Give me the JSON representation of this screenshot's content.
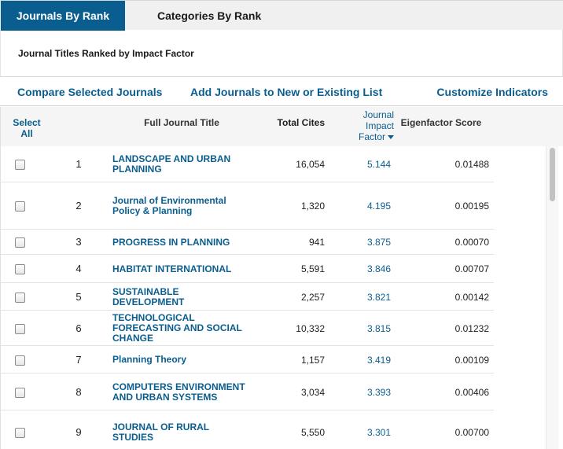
{
  "tabs": [
    {
      "label": "Journals By Rank",
      "active": true
    },
    {
      "label": "Categories By Rank",
      "active": false
    }
  ],
  "subtitle": "Journal Titles Ranked by Impact Factor",
  "actions": {
    "compare": "Compare Selected Journals",
    "add": "Add Journals to New or Existing List",
    "customize": "Customize Indicators"
  },
  "columns": {
    "select_line1": "Select",
    "select_line2": "All",
    "title": "Full Journal Title",
    "cites": "Total Cites",
    "jif_line1": "Journal",
    "jif_line2": "Impact",
    "jif_line3": "Factor",
    "eigen": "Eigenfactor Score"
  },
  "rows": [
    {
      "rank": "1",
      "title_lines": [
        "LANDSCAPE AND URBAN",
        "PLANNING"
      ],
      "cites": "16,054",
      "jif": "5.144",
      "eigen": "0.01488"
    },
    {
      "rank": "2",
      "title_lines": [
        "Journal of Environmental",
        "Policy & Planning"
      ],
      "cites": "1,320",
      "jif": "4.195",
      "eigen": "0.00195"
    },
    {
      "rank": "3",
      "title_lines": [
        "PROGRESS IN PLANNING"
      ],
      "cites": "941",
      "jif": "3.875",
      "eigen": "0.00070"
    },
    {
      "rank": "4",
      "title_lines": [
        "HABITAT INTERNATIONAL"
      ],
      "cites": "5,591",
      "jif": "3.846",
      "eigen": "0.00707"
    },
    {
      "rank": "5",
      "title_lines": [
        "SUSTAINABLE",
        "DEVELOPMENT"
      ],
      "cites": "2,257",
      "jif": "3.821",
      "eigen": "0.00142"
    },
    {
      "rank": "6",
      "title_lines": [
        "TECHNOLOGICAL",
        "FORECASTING AND SOCIAL",
        "CHANGE"
      ],
      "cites": "10,332",
      "jif": "3.815",
      "eigen": "0.01232"
    },
    {
      "rank": "7",
      "title_lines": [
        "Planning Theory"
      ],
      "cites": "1,157",
      "jif": "3.419",
      "eigen": "0.00109"
    },
    {
      "rank": "8",
      "title_lines": [
        "COMPUTERS ENVIRONMENT",
        "AND URBAN SYSTEMS"
      ],
      "cites": "3,034",
      "jif": "3.393",
      "eigen": "0.00406"
    },
    {
      "rank": "9",
      "title_lines": [
        "JOURNAL OF RURAL",
        "STUDIES"
      ],
      "cites": "5,550",
      "jif": "3.301",
      "eigen": "0.00700"
    }
  ],
  "icons": {
    "sort": "caret-down-icon",
    "checkbox": "checkbox-icon"
  },
  "colors": {
    "accent": "#0a5e8f",
    "tab_bg": "#f0f0f0",
    "header_bg": "#f5f5f5"
  }
}
